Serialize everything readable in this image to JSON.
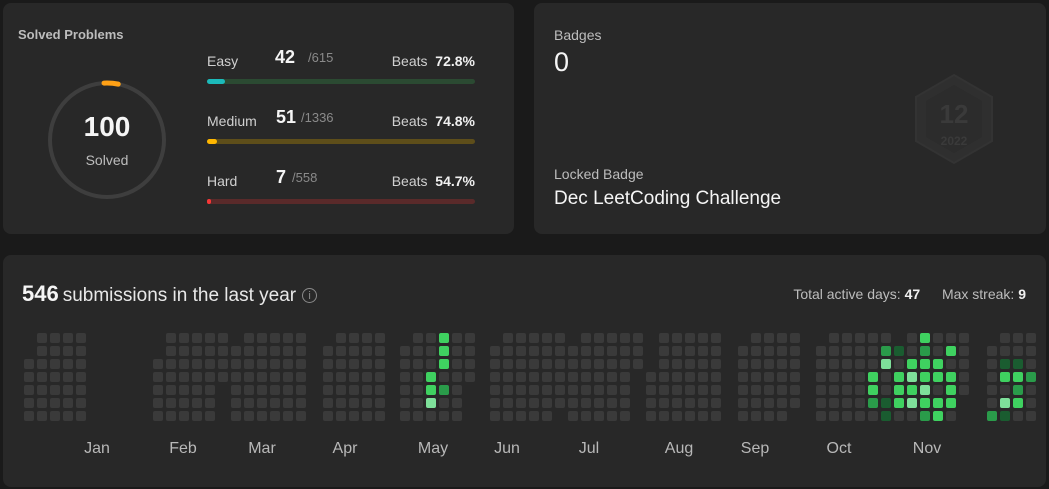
{
  "solved": {
    "title": "Solved Problems",
    "total": "100",
    "total_label": "Solved",
    "ring_progress": 0.04,
    "difficulties": [
      {
        "name": "Easy",
        "count": "42",
        "total": "/615",
        "beats_label": "Beats",
        "beats": "72.8%",
        "progress": 0.068,
        "track": "#2b4a32",
        "fill": "#1cbaba"
      },
      {
        "name": "Medium",
        "count": "51",
        "total": "/1336",
        "beats_label": "Beats",
        "beats": "74.8%",
        "progress": 0.038,
        "track": "#5e4e1a",
        "fill": "#ffb700"
      },
      {
        "name": "Hard",
        "count": "7",
        "total": "/558",
        "beats_label": "Beats",
        "beats": "54.7%",
        "progress": 0.013,
        "track": "#5a2a2a",
        "fill": "#f63737"
      }
    ]
  },
  "badges": {
    "label": "Badges",
    "count": "0",
    "locked_label": "Locked Badge",
    "locked_name": "Dec LeetCoding Challenge",
    "badge_art_text": [
      "12",
      "2022"
    ]
  },
  "submissions": {
    "count": "546",
    "label": "submissions in the last year",
    "info_icon": "info-icon",
    "active_days_label": "Total active days:",
    "active_days": "47",
    "max_streak_label": "Max streak:",
    "max_streak": "9",
    "months": [
      "Jan",
      "Feb",
      "Mar",
      "Apr",
      "May",
      "Jun",
      "Jul",
      "Aug",
      "Sep",
      "Oct",
      "Nov"
    ],
    "colors": {
      "empty": "#3a3a3a",
      "l1": "#1a5c30",
      "l2": "#2a9b4a",
      "l3": "#3fd160",
      "l4": "#7ee09a"
    }
  }
}
